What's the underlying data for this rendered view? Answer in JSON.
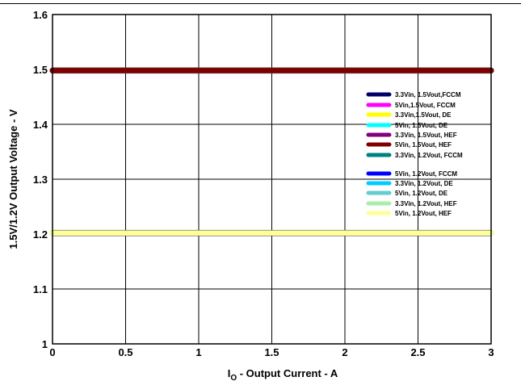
{
  "chart_data": {
    "type": "line",
    "title": "",
    "xlabel": {
      "main": "I",
      "sub": "O",
      "rest": " - Output Current - A"
    },
    "ylabel": "1.5V/1.2V Output Voltage - V",
    "xlim": [
      0,
      3
    ],
    "ylim": [
      1,
      1.6
    ],
    "x_ticks": [
      "0",
      "0.5",
      "1",
      "1.5",
      "2",
      "2.5",
      "3"
    ],
    "y_ticks": [
      "1",
      "1.1",
      "1.2",
      "1.3",
      "1.4",
      "1.5",
      "1.6"
    ],
    "grid": true,
    "legend_position": "right",
    "series": [
      {
        "name": "3.3Vin, 1.5Vout,FCCM",
        "color": "#000066",
        "x": [
          0,
          3
        ],
        "y": [
          1.498,
          1.498
        ]
      },
      {
        "name": "5Vin,1.5Vout, FCCM",
        "color": "#ff00ff",
        "x": [
          0,
          3
        ],
        "y": [
          1.498,
          1.498
        ]
      },
      {
        "name": "3.3Vin,1.5Vout, DE",
        "color": "#ffff00",
        "x": [
          0,
          3
        ],
        "y": [
          1.498,
          1.498
        ]
      },
      {
        "name": "5Vin, 1.5Vout, DE",
        "color": "#00ffff",
        "x": [
          0,
          3
        ],
        "y": [
          1.498,
          1.498
        ]
      },
      {
        "name": "3.3Vin, 1.5Vout, HEF",
        "color": "#800080",
        "x": [
          0,
          3
        ],
        "y": [
          1.498,
          1.498
        ]
      },
      {
        "name": "5Vin, 1.5Vout, HEF",
        "color": "#800000",
        "x": [
          0,
          3
        ],
        "y": [
          1.498,
          1.498
        ]
      },
      {
        "name": "3.3Vin, 1.2Vout, FCCM",
        "color": "#008080",
        "x": [
          0,
          3
        ],
        "y": [
          1.202,
          1.202
        ]
      },
      {
        "name": "5Vin, 1.2Vout, FCCM",
        "color": "#0000ff",
        "x": [
          0,
          3
        ],
        "y": [
          1.202,
          1.202
        ]
      },
      {
        "name": "3.3Vin, 1.2Vout, DE",
        "color": "#00ccff",
        "x": [
          0,
          3
        ],
        "y": [
          1.202,
          1.202
        ]
      },
      {
        "name": "5Vin, 1.2Vout, DE",
        "color": "#66cccc",
        "x": [
          0,
          3
        ],
        "y": [
          1.202,
          1.202
        ]
      },
      {
        "name": "3.3Vin, 1.2Vout, HEF",
        "color": "#a8f0a8",
        "x": [
          0,
          3
        ],
        "y": [
          1.202,
          1.202
        ]
      },
      {
        "name": "5Vin, 1.2Vout, HEF",
        "color": "#ffff99",
        "x": [
          0,
          3
        ],
        "y": [
          1.202,
          1.202
        ]
      }
    ]
  }
}
